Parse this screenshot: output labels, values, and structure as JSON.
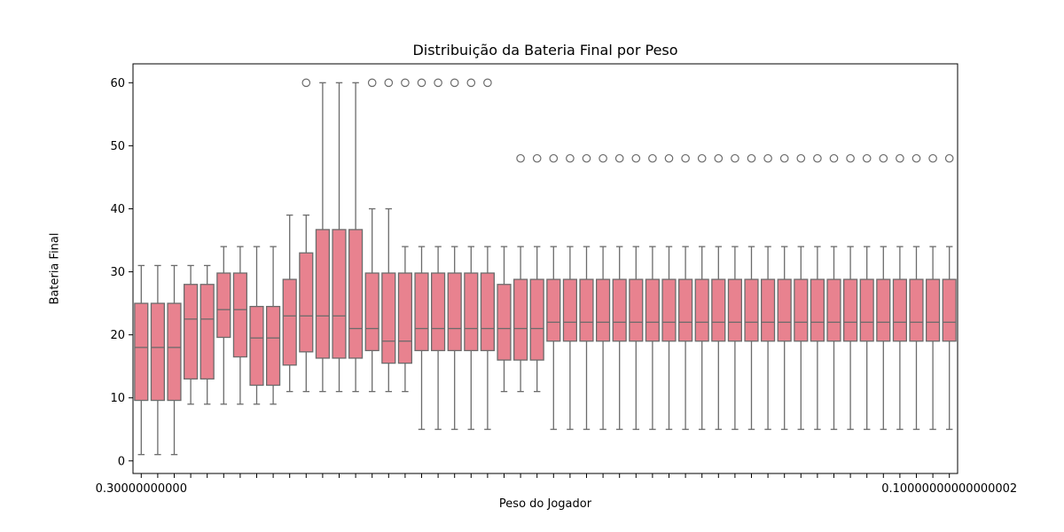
{
  "chart_data": {
    "type": "box",
    "title": "Distribuição da Bateria Final por Peso",
    "xlabel": "Peso do Jogador",
    "ylabel": "Bateria Final",
    "ylim": [
      -2,
      63
    ],
    "yticks": [
      0,
      10,
      20,
      30,
      40,
      50,
      60
    ],
    "grid": false,
    "box_color": "#e8828f",
    "edge_color": "#6b6b6b",
    "x_tick_label_first": "0.30000000000",
    "x_tick_label_last": "0.10000000000000002",
    "boxes": [
      {
        "q1": 9.6,
        "median": 18,
        "q3": 25,
        "whisker_low": 1,
        "whisker_high": 31,
        "outliers": []
      },
      {
        "q1": 9.6,
        "median": 18,
        "q3": 25,
        "whisker_low": 1,
        "whisker_high": 31,
        "outliers": []
      },
      {
        "q1": 9.6,
        "median": 18,
        "q3": 25,
        "whisker_low": 1,
        "whisker_high": 31,
        "outliers": []
      },
      {
        "q1": 13,
        "median": 22.5,
        "q3": 28,
        "whisker_low": 9,
        "whisker_high": 31,
        "outliers": []
      },
      {
        "q1": 13,
        "median": 22.5,
        "q3": 28,
        "whisker_low": 9,
        "whisker_high": 31,
        "outliers": []
      },
      {
        "q1": 19.6,
        "median": 24,
        "q3": 29.8,
        "whisker_low": 9,
        "whisker_high": 34,
        "outliers": []
      },
      {
        "q1": 16.5,
        "median": 24,
        "q3": 29.8,
        "whisker_low": 9,
        "whisker_high": 34,
        "outliers": []
      },
      {
        "q1": 12,
        "median": 19.5,
        "q3": 24.5,
        "whisker_low": 9,
        "whisker_high": 34,
        "outliers": []
      },
      {
        "q1": 12,
        "median": 19.5,
        "q3": 24.5,
        "whisker_low": 9,
        "whisker_high": 34,
        "outliers": []
      },
      {
        "q1": 15.2,
        "median": 23,
        "q3": 28.8,
        "whisker_low": 11,
        "whisker_high": 39,
        "outliers": []
      },
      {
        "q1": 17.3,
        "median": 23,
        "q3": 33,
        "whisker_low": 11,
        "whisker_high": 39,
        "outliers": [
          60
        ]
      },
      {
        "q1": 16.3,
        "median": 23,
        "q3": 36.7,
        "whisker_low": 11,
        "whisker_high": 60,
        "outliers": []
      },
      {
        "q1": 16.3,
        "median": 23,
        "q3": 36.7,
        "whisker_low": 11,
        "whisker_high": 60,
        "outliers": []
      },
      {
        "q1": 16.3,
        "median": 21,
        "q3": 36.7,
        "whisker_low": 11,
        "whisker_high": 60,
        "outliers": []
      },
      {
        "q1": 17.5,
        "median": 21,
        "q3": 29.8,
        "whisker_low": 11,
        "whisker_high": 40,
        "outliers": [
          60
        ]
      },
      {
        "q1": 15.5,
        "median": 19,
        "q3": 29.8,
        "whisker_low": 11,
        "whisker_high": 40,
        "outliers": [
          60
        ]
      },
      {
        "q1": 15.5,
        "median": 19,
        "q3": 29.8,
        "whisker_low": 11,
        "whisker_high": 34,
        "outliers": [
          60
        ]
      },
      {
        "q1": 17.5,
        "median": 21,
        "q3": 29.8,
        "whisker_low": 5,
        "whisker_high": 34,
        "outliers": [
          60
        ]
      },
      {
        "q1": 17.5,
        "median": 21,
        "q3": 29.8,
        "whisker_low": 5,
        "whisker_high": 34,
        "outliers": [
          60
        ]
      },
      {
        "q1": 17.5,
        "median": 21,
        "q3": 29.8,
        "whisker_low": 5,
        "whisker_high": 34,
        "outliers": [
          60
        ]
      },
      {
        "q1": 17.5,
        "median": 21,
        "q3": 29.8,
        "whisker_low": 5,
        "whisker_high": 34,
        "outliers": [
          60
        ]
      },
      {
        "q1": 17.5,
        "median": 21,
        "q3": 29.8,
        "whisker_low": 5,
        "whisker_high": 34,
        "outliers": [
          60
        ]
      },
      {
        "q1": 16,
        "median": 21,
        "q3": 28,
        "whisker_low": 11,
        "whisker_high": 34,
        "outliers": []
      },
      {
        "q1": 16,
        "median": 21,
        "q3": 28.8,
        "whisker_low": 11,
        "whisker_high": 34,
        "outliers": [
          48
        ]
      },
      {
        "q1": 16,
        "median": 21,
        "q3": 28.8,
        "whisker_low": 11,
        "whisker_high": 34,
        "outliers": [
          48
        ]
      },
      {
        "q1": 19,
        "median": 22,
        "q3": 28.8,
        "whisker_low": 5,
        "whisker_high": 34,
        "outliers": [
          48
        ]
      },
      {
        "q1": 19,
        "median": 22,
        "q3": 28.8,
        "whisker_low": 5,
        "whisker_high": 34,
        "outliers": [
          48
        ]
      },
      {
        "q1": 19,
        "median": 22,
        "q3": 28.8,
        "whisker_low": 5,
        "whisker_high": 34,
        "outliers": [
          48
        ]
      },
      {
        "q1": 19,
        "median": 22,
        "q3": 28.8,
        "whisker_low": 5,
        "whisker_high": 34,
        "outliers": [
          48
        ]
      },
      {
        "q1": 19,
        "median": 22,
        "q3": 28.8,
        "whisker_low": 5,
        "whisker_high": 34,
        "outliers": [
          48
        ]
      },
      {
        "q1": 19,
        "median": 22,
        "q3": 28.8,
        "whisker_low": 5,
        "whisker_high": 34,
        "outliers": [
          48
        ]
      },
      {
        "q1": 19,
        "median": 22,
        "q3": 28.8,
        "whisker_low": 5,
        "whisker_high": 34,
        "outliers": [
          48
        ]
      },
      {
        "q1": 19,
        "median": 22,
        "q3": 28.8,
        "whisker_low": 5,
        "whisker_high": 34,
        "outliers": [
          48
        ]
      },
      {
        "q1": 19,
        "median": 22,
        "q3": 28.8,
        "whisker_low": 5,
        "whisker_high": 34,
        "outliers": [
          48
        ]
      },
      {
        "q1": 19,
        "median": 22,
        "q3": 28.8,
        "whisker_low": 5,
        "whisker_high": 34,
        "outliers": [
          48
        ]
      },
      {
        "q1": 19,
        "median": 22,
        "q3": 28.8,
        "whisker_low": 5,
        "whisker_high": 34,
        "outliers": [
          48
        ]
      },
      {
        "q1": 19,
        "median": 22,
        "q3": 28.8,
        "whisker_low": 5,
        "whisker_high": 34,
        "outliers": [
          48
        ]
      },
      {
        "q1": 19,
        "median": 22,
        "q3": 28.8,
        "whisker_low": 5,
        "whisker_high": 34,
        "outliers": [
          48
        ]
      },
      {
        "q1": 19,
        "median": 22,
        "q3": 28.8,
        "whisker_low": 5,
        "whisker_high": 34,
        "outliers": [
          48
        ]
      },
      {
        "q1": 19,
        "median": 22,
        "q3": 28.8,
        "whisker_low": 5,
        "whisker_high": 34,
        "outliers": [
          48
        ]
      },
      {
        "q1": 19,
        "median": 22,
        "q3": 28.8,
        "whisker_low": 5,
        "whisker_high": 34,
        "outliers": [
          48
        ]
      },
      {
        "q1": 19,
        "median": 22,
        "q3": 28.8,
        "whisker_low": 5,
        "whisker_high": 34,
        "outliers": [
          48
        ]
      },
      {
        "q1": 19,
        "median": 22,
        "q3": 28.8,
        "whisker_low": 5,
        "whisker_high": 34,
        "outliers": [
          48
        ]
      },
      {
        "q1": 19,
        "median": 22,
        "q3": 28.8,
        "whisker_low": 5,
        "whisker_high": 34,
        "outliers": [
          48
        ]
      },
      {
        "q1": 19,
        "median": 22,
        "q3": 28.8,
        "whisker_low": 5,
        "whisker_high": 34,
        "outliers": [
          48
        ]
      },
      {
        "q1": 19,
        "median": 22,
        "q3": 28.8,
        "whisker_low": 5,
        "whisker_high": 34,
        "outliers": [
          48
        ]
      },
      {
        "q1": 19,
        "median": 22,
        "q3": 28.8,
        "whisker_low": 5,
        "whisker_high": 34,
        "outliers": [
          48
        ]
      },
      {
        "q1": 19,
        "median": 22,
        "q3": 28.8,
        "whisker_low": 5,
        "whisker_high": 34,
        "outliers": [
          48
        ]
      },
      {
        "q1": 19,
        "median": 22,
        "q3": 28.8,
        "whisker_low": 5,
        "whisker_high": 34,
        "outliers": [
          48
        ]
      },
      {
        "q1": 19,
        "median": 22,
        "q3": 28.8,
        "whisker_low": 5,
        "whisker_high": 34,
        "outliers": [
          48
        ]
      }
    ]
  }
}
